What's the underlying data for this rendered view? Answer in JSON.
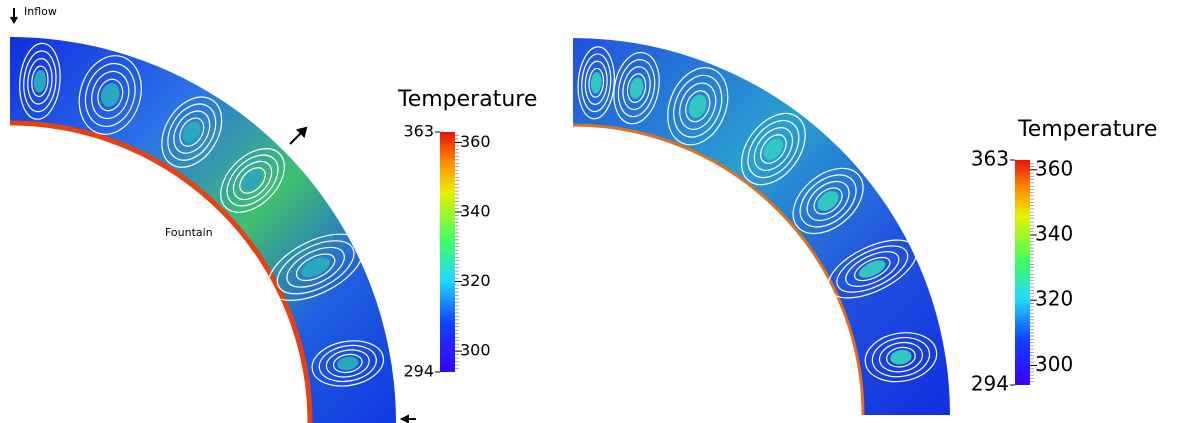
{
  "panels": [
    {
      "annotations": {
        "inflow": "Inflow",
        "fountain": "Fountain"
      },
      "colorbar": {
        "title": "Temperature",
        "range": [
          294,
          363
        ],
        "ticks": [
          300,
          320,
          340,
          360
        ]
      }
    },
    {
      "colorbar": {
        "title": "Temperature",
        "range": [
          294,
          363
        ],
        "ticks": [
          300,
          320,
          340,
          360
        ]
      }
    }
  ]
}
